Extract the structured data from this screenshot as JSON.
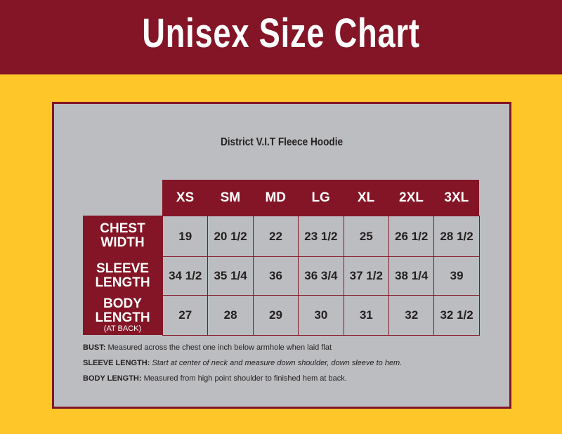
{
  "header": {
    "title": "Unisex Size Chart"
  },
  "product": "District V.I.T Fleece Hoodie",
  "table": {
    "columns": [
      "XS",
      "SM",
      "MD",
      "LG",
      "XL",
      "2XL",
      "3XL"
    ],
    "rows": [
      {
        "label": [
          "CHEST",
          "WIDTH"
        ],
        "values": [
          "19",
          "20 1/2",
          "22",
          "23 1/2",
          "25",
          "26 1/2",
          "28 1/2"
        ]
      },
      {
        "label": [
          "SLEEVE",
          "LENGTH"
        ],
        "values": [
          "34 1/2",
          "35 1/4",
          "36",
          "36 3/4",
          "37 1/2",
          "38 1/4",
          "39"
        ]
      },
      {
        "label": [
          "BODY",
          "LENGTH"
        ],
        "sublabel": "(AT BACK)",
        "values": [
          "27",
          "28",
          "29",
          "30",
          "31",
          "32",
          "32 1/2"
        ]
      }
    ]
  },
  "notes": [
    {
      "label": "BUST:",
      "text": "Measured across the chest one inch below armhole when laid flat",
      "italic": false
    },
    {
      "label": "SLEEVE LENGTH:",
      "text": "Start at center of neck and measure down shoulder, down sleeve to hem.",
      "italic": true
    },
    {
      "label": "BODY LENGTH:",
      "text": "Measured from high point shoulder to finished hem at back.",
      "italic": false
    }
  ]
}
